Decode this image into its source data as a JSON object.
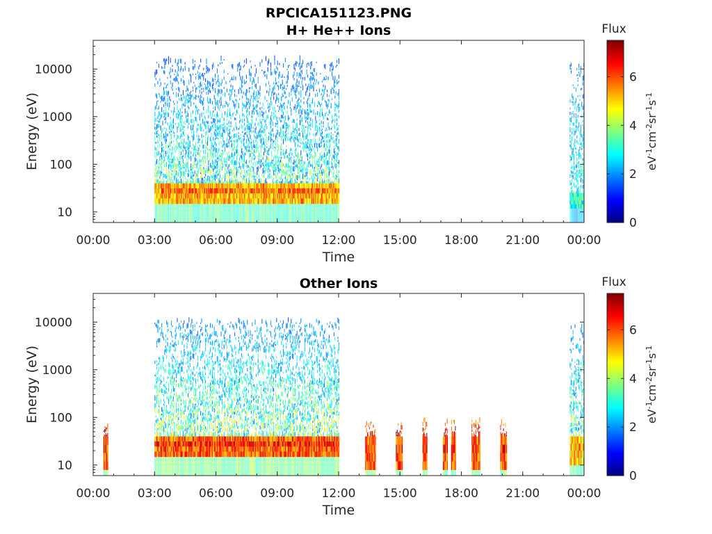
{
  "figure_title": "RPCICA151123.PNG",
  "chart_data": [
    {
      "type": "heatmap",
      "title": "H+ He++ Ions",
      "xlabel": "Time",
      "ylabel": "Energy (eV)",
      "x_ticks": [
        "00:00",
        "03:00",
        "06:00",
        "09:00",
        "12:00",
        "15:00",
        "18:00",
        "21:00",
        "00:00"
      ],
      "x_range_hours": [
        0,
        24
      ],
      "y_scale": "log",
      "y_ticks": [
        "10",
        "100",
        "1000",
        "10000"
      ],
      "y_range": [
        6,
        40000
      ],
      "colorbar": {
        "title": "Flux",
        "label": "eV-1cm-2sr-1s-1",
        "range": [
          0,
          7.5
        ],
        "ticks": [
          "0",
          "2",
          "4",
          "6"
        ]
      },
      "colormap": "jet",
      "data_intervals": [
        {
          "start_h": 3.0,
          "end_h": 12.0,
          "core_energy_range": [
            15,
            40
          ],
          "core_flux": 6.2,
          "tail_top_energy": 15000,
          "tail_flux": 1.2
        },
        {
          "start_h": 23.3,
          "end_h": 24.0,
          "core_energy_range": [
            12,
            25
          ],
          "core_flux": 4.0,
          "tail_top_energy": 12000,
          "tail_flux": 1.5
        }
      ],
      "grid": false,
      "legend": "colorbar-right"
    },
    {
      "type": "heatmap",
      "title": "Other Ions",
      "xlabel": "Time",
      "ylabel": "Energy (eV)",
      "x_ticks": [
        "00:00",
        "03:00",
        "06:00",
        "09:00",
        "12:00",
        "15:00",
        "18:00",
        "21:00",
        "00:00"
      ],
      "x_range_hours": [
        0,
        24
      ],
      "y_scale": "log",
      "y_ticks": [
        "10",
        "100",
        "1000",
        "10000"
      ],
      "y_range": [
        6,
        40000
      ],
      "colorbar": {
        "title": "Flux",
        "label": "eV-1cm-2sr-1s-1",
        "range": [
          0,
          7.5
        ],
        "ticks": [
          "0",
          "2",
          "4",
          "6"
        ]
      },
      "colormap": "jet",
      "data_intervals": [
        {
          "start_h": 0.5,
          "end_h": 0.7,
          "core_energy_range": [
            8,
            40
          ],
          "core_flux": 6.8,
          "tail_top_energy": 80,
          "tail_flux": 5.0
        },
        {
          "start_h": 3.0,
          "end_h": 12.0,
          "core_energy_range": [
            15,
            40
          ],
          "core_flux": 6.8,
          "tail_top_energy": 10000,
          "tail_flux": 1.5
        },
        {
          "start_h": 13.3,
          "end_h": 13.8,
          "core_energy_range": [
            8,
            40
          ],
          "core_flux": 6.8,
          "tail_top_energy": 80,
          "tail_flux": 5.0
        },
        {
          "start_h": 14.8,
          "end_h": 15.1,
          "core_energy_range": [
            8,
            40
          ],
          "core_flux": 6.8,
          "tail_top_energy": 80,
          "tail_flux": 5.0
        },
        {
          "start_h": 16.1,
          "end_h": 16.3,
          "core_energy_range": [
            8,
            40
          ],
          "core_flux": 6.8,
          "tail_top_energy": 80,
          "tail_flux": 5.0
        },
        {
          "start_h": 17.1,
          "end_h": 17.3,
          "core_energy_range": [
            8,
            40
          ],
          "core_flux": 6.8,
          "tail_top_energy": 80,
          "tail_flux": 5.0
        },
        {
          "start_h": 17.5,
          "end_h": 17.7,
          "core_energy_range": [
            8,
            40
          ],
          "core_flux": 6.8,
          "tail_top_energy": 80,
          "tail_flux": 5.0
        },
        {
          "start_h": 18.5,
          "end_h": 18.9,
          "core_energy_range": [
            8,
            40
          ],
          "core_flux": 6.8,
          "tail_top_energy": 80,
          "tail_flux": 5.0
        },
        {
          "start_h": 19.9,
          "end_h": 20.2,
          "core_energy_range": [
            8,
            40
          ],
          "core_flux": 6.8,
          "tail_top_energy": 80,
          "tail_flux": 5.0
        },
        {
          "start_h": 23.3,
          "end_h": 24.0,
          "core_energy_range": [
            10,
            40
          ],
          "core_flux": 5.8,
          "tail_top_energy": 8000,
          "tail_flux": 1.5
        }
      ],
      "grid": false,
      "legend": "colorbar-right"
    }
  ]
}
